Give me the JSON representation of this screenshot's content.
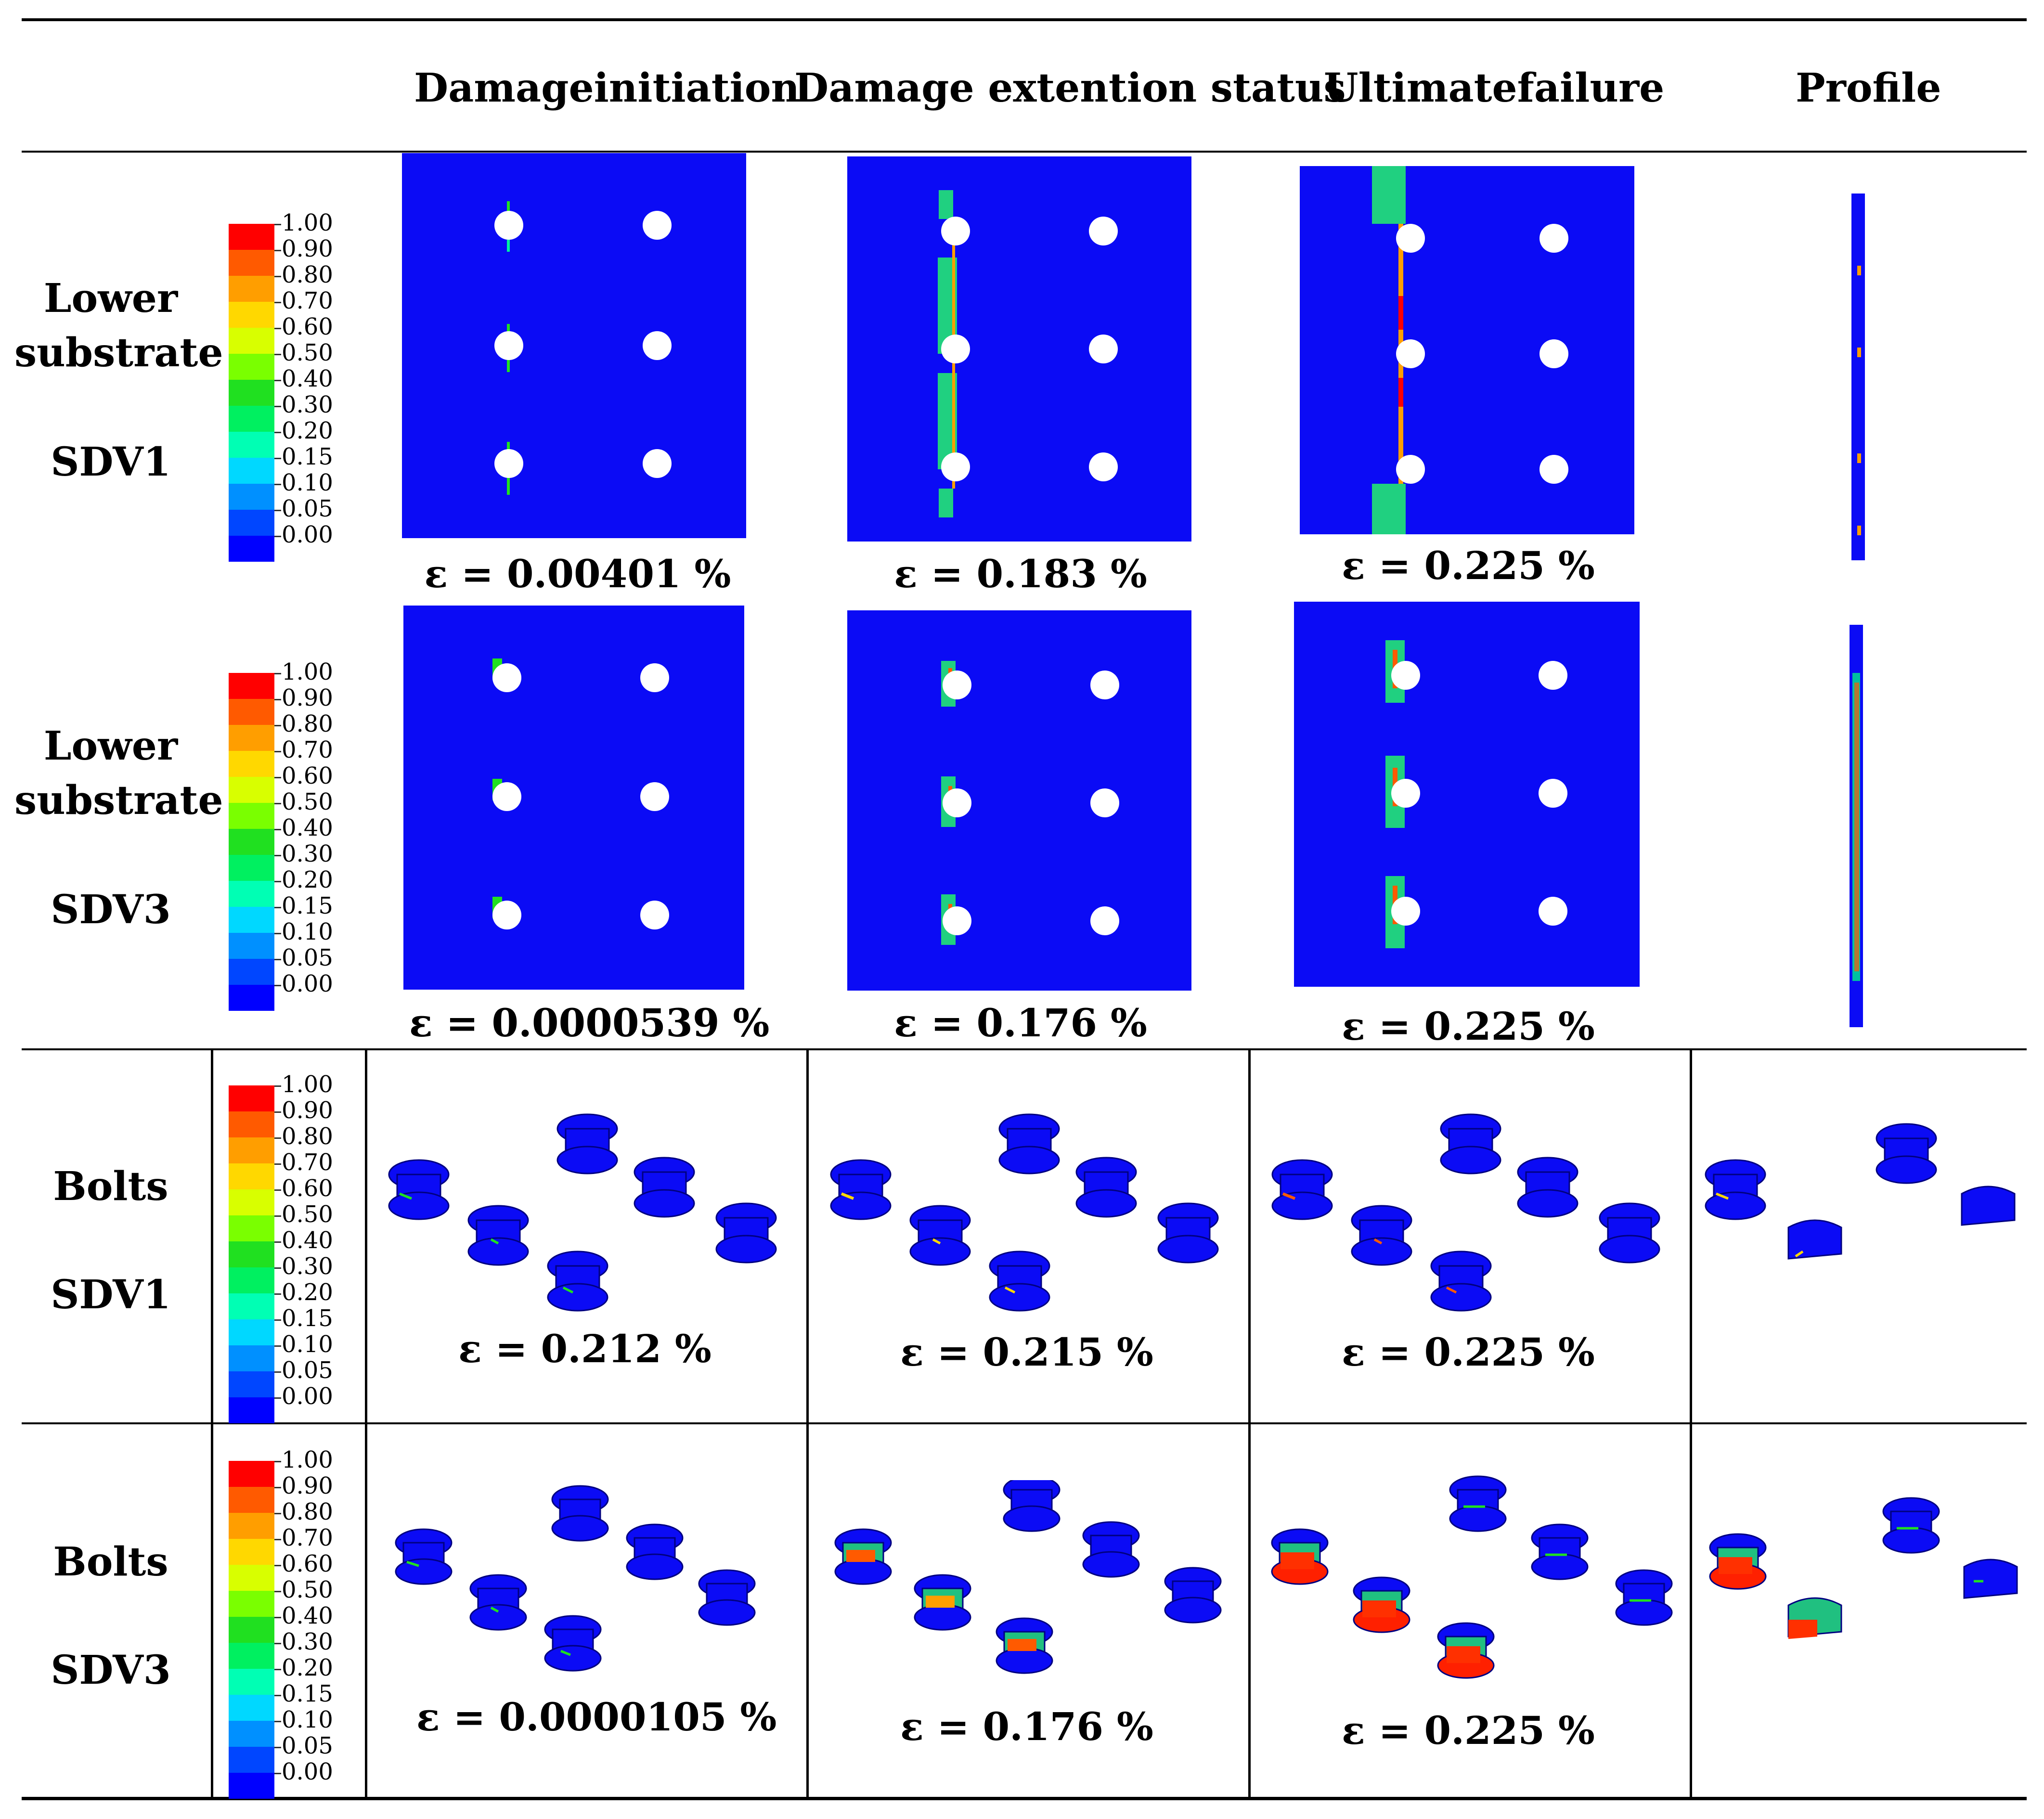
{
  "headers": {
    "col1": "Damageinitiation",
    "col2": "Damage extention status",
    "col3": "Ultimatefailure",
    "col4": "Profile"
  },
  "rows": [
    {
      "line1": "Lower",
      "line2": "substrate",
      "variable": "SDV1",
      "strains": [
        "ε = 0.00401 %",
        "ε = 0.183 %",
        "ε = 0.225 %"
      ]
    },
    {
      "line1": "Lower",
      "line2": "substrate",
      "variable": "SDV3",
      "strains": [
        "ε = 0.0000539 %",
        "ε = 0.176 %",
        "ε = 0.225 %"
      ]
    },
    {
      "line1": "Bolts",
      "variable": "SDV1",
      "strains": [
        "ε = 0.212 %",
        "ε = 0.215 %",
        "ε = 0.225 %"
      ]
    },
    {
      "line1": "Bolts",
      "variable": "SDV3",
      "strains": [
        "ε = 0.0000105 %",
        "ε = 0.176 %",
        "ε = 0.225 %"
      ]
    }
  ],
  "legend": {
    "labels": [
      "1.00",
      "0.90",
      "0.80",
      "0.70",
      "0.60",
      "0.50",
      "0.40",
      "0.30",
      "0.20",
      "0.15",
      "0.10",
      "0.05",
      "0.00"
    ],
    "colors": [
      "#ff0000",
      "#ff5a00",
      "#ff9e00",
      "#ffd800",
      "#d8ff00",
      "#7aff00",
      "#20e020",
      "#00f060",
      "#00ffb4",
      "#00d8ff",
      "#0090ff",
      "#0046ff",
      "#0000ff"
    ]
  },
  "colors": {
    "field": "#0b0bf5",
    "hole": "#ffffff"
  }
}
